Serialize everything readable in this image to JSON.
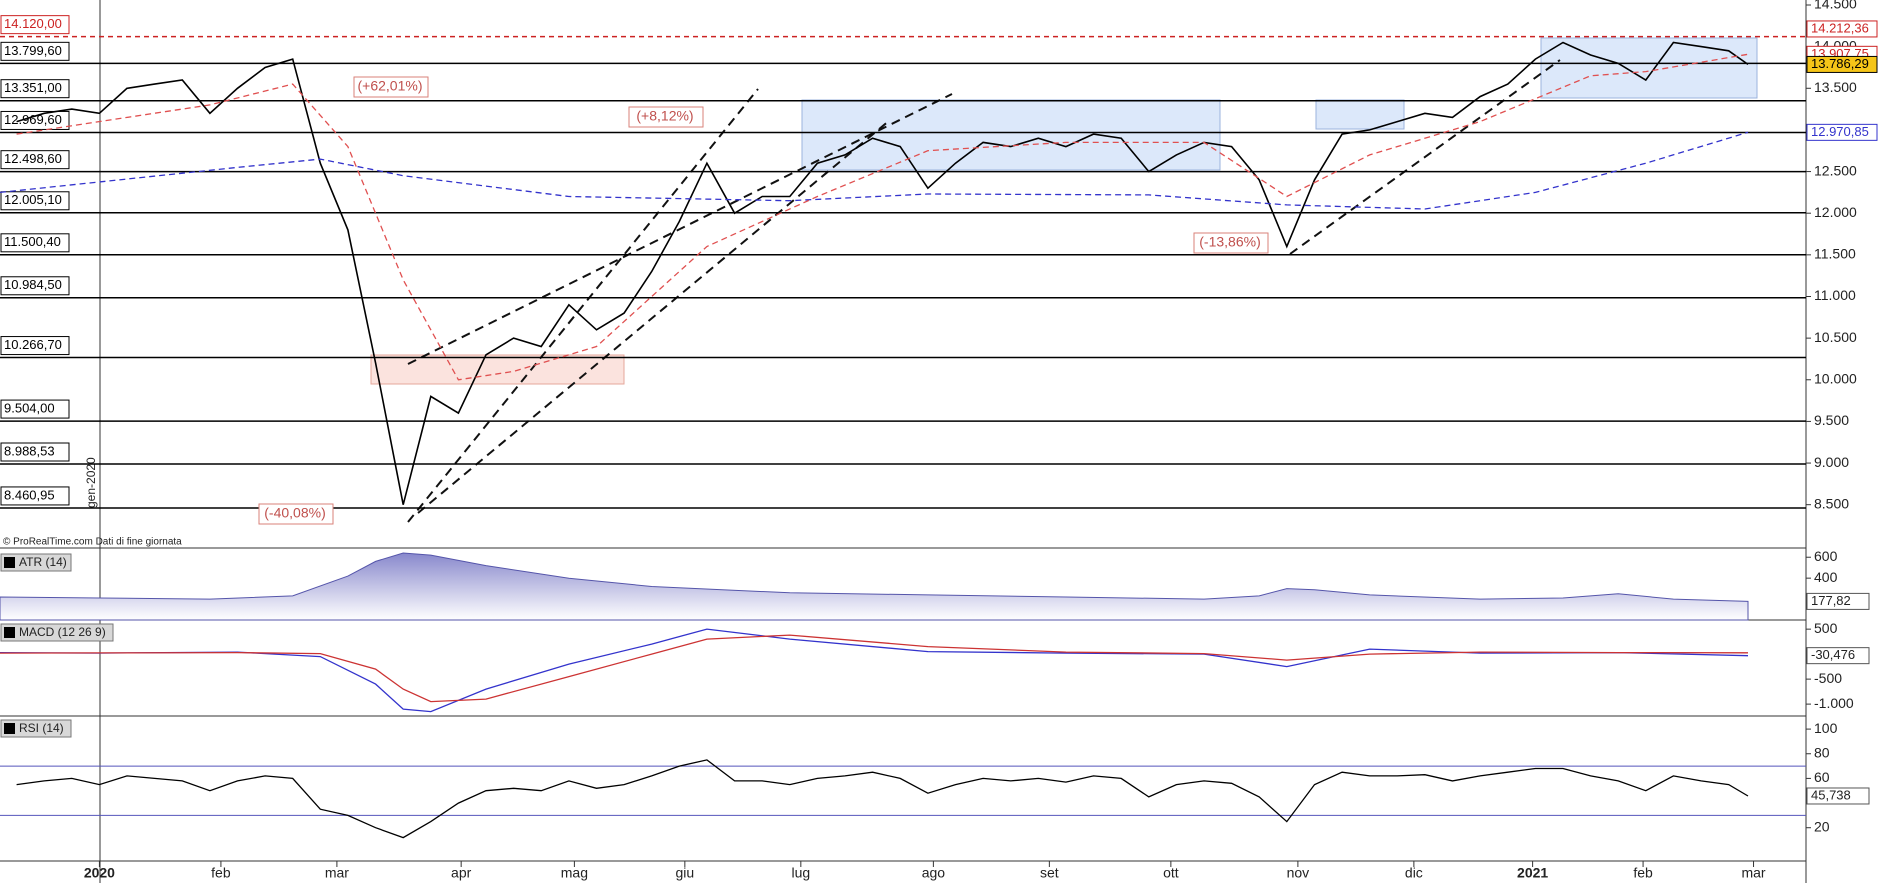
{
  "chart_data": [
    {
      "type": "line",
      "x": [
        -3,
        -2,
        -1,
        0,
        1,
        2,
        3,
        4,
        5,
        6,
        7,
        8,
        9,
        10,
        11,
        12,
        13,
        14,
        15,
        16,
        17,
        18,
        19,
        20,
        21,
        22,
        23,
        24,
        25,
        26,
        27,
        28,
        29,
        30,
        31,
        32,
        33,
        34,
        35,
        36,
        37,
        38,
        39,
        40,
        41,
        42,
        43,
        44,
        45,
        46,
        47,
        48,
        49,
        50,
        51,
        52,
        53,
        54,
        55,
        56,
        57,
        58,
        59,
        59.7
      ],
      "series": [
        {
          "color": "#000000",
          "values": [
            13100,
            13200,
            13250,
            13200,
            13500,
            13550,
            13600,
            13200,
            13500,
            13750,
            13850,
            12600,
            11800,
            10200,
            8500,
            9800,
            9600,
            10300,
            10500,
            10400,
            10900,
            10600,
            10800,
            11300,
            11900,
            12600,
            12000,
            12200,
            12200,
            12600,
            12700,
            12900,
            12800,
            12300,
            12600,
            12850,
            12800,
            12900,
            12800,
            12950,
            12900,
            12500,
            12700,
            12850,
            12800,
            12400,
            11600,
            12400,
            12950,
            13000,
            13100,
            13200,
            13150,
            13400,
            13550,
            13850,
            14050,
            13900,
            13800,
            13600,
            14050,
            14000,
            13950,
            13786.29
          ]
        },
        {
          "color": "#3333cc",
          "dashed": true,
          "x": [
            -3.6,
            5,
            8,
            11,
            17,
            25,
            30,
            38,
            43,
            48,
            52,
            56,
            59.7
          ],
          "values": [
            12250,
            12550,
            12650,
            12450,
            12200,
            12150,
            12230,
            12220,
            12100,
            12050,
            12250,
            12600,
            12970.85
          ]
        },
        {
          "color": "#e05050",
          "dashed": true,
          "x": [
            -3,
            4,
            7,
            9,
            11,
            13,
            15,
            18,
            22,
            26,
            30,
            35,
            40,
            43,
            46,
            50,
            54,
            56,
            59.7
          ],
          "values": [
            12950,
            13300,
            13550,
            12800,
            11200,
            10000,
            10100,
            10400,
            11600,
            12200,
            12750,
            12850,
            12850,
            12200,
            12700,
            13100,
            13650,
            13700,
            13907.75
          ]
        }
      ],
      "xlim": [
        -3.6,
        61.8
      ],
      "xticks": [
        {
          "value": 0,
          "label": "2020"
        },
        {
          "value": 4.4,
          "label": "feb"
        },
        {
          "value": 8.6,
          "label": "mar"
        },
        {
          "value": 13.1,
          "label": "apr"
        },
        {
          "value": 17.2,
          "label": "mag"
        },
        {
          "value": 21.2,
          "label": "giu"
        },
        {
          "value": 25.4,
          "label": "lug"
        },
        {
          "value": 30.2,
          "label": "ago"
        },
        {
          "value": 34.4,
          "label": "set"
        },
        {
          "value": 38.8,
          "label": "ott"
        },
        {
          "value": 43.4,
          "label": "nov"
        },
        {
          "value": 47.6,
          "label": "dic"
        },
        {
          "value": 51.9,
          "label": "2021"
        },
        {
          "value": 55.9,
          "label": "feb"
        },
        {
          "value": 59.9,
          "label": "mar"
        }
      ],
      "ylim": [
        7980,
        14560
      ],
      "yticks": [
        {
          "value": 14500,
          "label": "14.500"
        },
        {
          "value": 14000,
          "label": "14.000"
        },
        {
          "value": 13500,
          "label": "13.500"
        },
        {
          "value": 13000,
          "label": "13.000"
        },
        {
          "value": 12500,
          "label": "12.500"
        },
        {
          "value": 12000,
          "label": "12.000"
        },
        {
          "value": 11500,
          "label": "11.500"
        },
        {
          "value": 11000,
          "label": "11.000"
        },
        {
          "value": 10500,
          "label": "10.500"
        },
        {
          "value": 10000,
          "label": "10.000"
        },
        {
          "value": 9500,
          "label": "9.500"
        },
        {
          "value": 9000,
          "label": "9.000"
        },
        {
          "value": 8500,
          "label": "8.500"
        }
      ],
      "levels": [
        {
          "value": 14120,
          "label": "14.120,00",
          "color": "#cc2222",
          "dashed": true
        },
        {
          "value": 13799.6,
          "label": "13.799,60",
          "color": "#000000"
        },
        {
          "value": 13351,
          "label": "13.351,00",
          "color": "#000000"
        },
        {
          "value": 12969.6,
          "label": "12.969,60",
          "color": "#000000"
        },
        {
          "value": 12498.6,
          "label": "12.498,60",
          "color": "#000000"
        },
        {
          "value": 12005.1,
          "label": "12.005,10",
          "color": "#000000"
        },
        {
          "value": 11500.4,
          "label": "11.500,40",
          "color": "#000000"
        },
        {
          "value": 10984.5,
          "label": "10.984,50",
          "color": "#000000"
        },
        {
          "value": 10266.7,
          "label": "10.266,70",
          "color": "#000000"
        },
        {
          "value": 9504,
          "label": "9.504,00",
          "color": "#000000"
        },
        {
          "value": 8988.53,
          "label": "8.988,53",
          "color": "#000000"
        },
        {
          "value": 8460.95,
          "label": "8.460,95",
          "color": "#000000"
        }
      ],
      "badges": [
        {
          "value": 14212.36,
          "label": "14.212,36",
          "color": "#cc2222",
          "fill": "#ffffff"
        },
        {
          "value": 13907.75,
          "label": "13.907,75",
          "color": "#cc2222",
          "fill": "#ffffff"
        },
        {
          "value": 13786.29,
          "label": "13.786,29",
          "color": "#000000",
          "fill": "#f5c518"
        },
        {
          "value": 12970.85,
          "label": "12.970,85",
          "color": "#3333cc",
          "fill": "#ffffff"
        }
      ],
      "annotations": [
        "(+62,01%)",
        "(+8,12%)",
        "(-13,86%)",
        "(-40,08%)"
      ],
      "credit": "© ProRealTime.com Dati di fine giornata",
      "date_label": "gen-2020"
    },
    {
      "type": "area",
      "title": "ATR (14)",
      "color": "#5555aa",
      "x": [
        -3.6,
        0,
        4,
        7,
        9,
        10,
        11,
        12,
        14,
        17,
        20,
        25,
        30,
        35,
        40,
        42,
        43,
        44,
        46,
        50,
        53,
        55,
        57,
        59.7
      ],
      "values": [
        220,
        210,
        200,
        230,
        420,
        560,
        640,
        620,
        520,
        400,
        320,
        260,
        240,
        220,
        200,
        230,
        300,
        290,
        240,
        200,
        210,
        250,
        200,
        177.82
      ],
      "value_label": "177,82",
      "ylim": [
        0,
        650
      ],
      "yticks": [
        400,
        600
      ]
    },
    {
      "type": "line",
      "title": "MACD (12 26 9)",
      "x": [
        -3.6,
        0,
        5,
        8,
        10,
        11,
        12,
        14,
        17,
        20,
        22,
        25,
        30,
        35,
        40,
        43,
        46,
        50,
        55,
        59.7
      ],
      "series": [
        {
          "color": "#3333cc",
          "values": [
            30,
            20,
            40,
            -50,
            -600,
            -1100,
            -1150,
            -700,
            -200,
            200,
            500,
            300,
            50,
            20,
            0,
            -250,
            100,
            20,
            30,
            -30.476
          ]
        },
        {
          "color": "#cc3333",
          "values": [
            20,
            25,
            30,
            10,
            -300,
            -700,
            -950,
            -900,
            -450,
            0,
            300,
            380,
            150,
            40,
            10,
            -120,
            0,
            40,
            30,
            26.353
          ]
        }
      ],
      "value_label": "-30,476",
      "ylim": [
        -1238,
        643
      ],
      "yticks": [
        500,
        -500,
        {
          "value": -1000,
          "label": "-1.000"
        }
      ]
    },
    {
      "type": "line",
      "title": "RSI (14)",
      "x": [
        -3,
        -2,
        -1,
        0,
        1,
        2,
        3,
        4,
        5,
        6,
        7,
        8,
        9,
        10,
        11,
        12,
        13,
        14,
        15,
        16,
        17,
        18,
        19,
        20,
        21,
        22,
        23,
        24,
        25,
        26,
        27,
        28,
        29,
        30,
        31,
        32,
        33,
        34,
        35,
        36,
        37,
        38,
        39,
        40,
        41,
        42,
        43,
        44,
        45,
        46,
        47,
        48,
        49,
        50,
        51,
        52,
        53,
        54,
        55,
        56,
        57,
        58,
        59,
        59.7
      ],
      "series": [
        {
          "color": "#000000",
          "values": [
            55,
            58,
            60,
            55,
            62,
            60,
            58,
            50,
            58,
            62,
            60,
            35,
            30,
            20,
            12,
            25,
            40,
            50,
            52,
            50,
            58,
            52,
            55,
            62,
            70,
            75,
            58,
            58,
            55,
            60,
            62,
            65,
            60,
            48,
            55,
            60,
            58,
            60,
            57,
            62,
            60,
            45,
            55,
            58,
            56,
            45,
            25,
            55,
            65,
            62,
            62,
            63,
            58,
            62,
            65,
            68,
            68,
            62,
            58,
            50,
            62,
            58,
            55,
            45.738
          ]
        }
      ],
      "value_label": "45,738",
      "bands": [
        30,
        70
      ],
      "ylim": [
        -7,
        109
      ],
      "yticks": [
        20,
        60,
        80,
        100
      ]
    }
  ]
}
